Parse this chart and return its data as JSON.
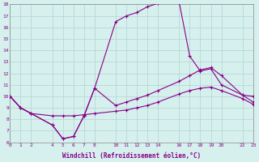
{
  "xlabel": "Windchill (Refroidissement éolien,°C)",
  "bg_color": "#d6f0ee",
  "line_color": "#880088",
  "grid_color": "#b8d8d4",
  "line1_x": [
    0,
    1,
    2,
    4,
    5,
    6,
    7,
    8,
    10,
    11,
    12,
    13,
    14,
    16,
    17,
    18,
    19,
    20,
    22,
    23
  ],
  "line1_y": [
    10.0,
    9.0,
    8.5,
    8.3,
    8.3,
    8.3,
    8.4,
    8.5,
    8.7,
    8.8,
    9.0,
    9.2,
    9.5,
    10.2,
    10.5,
    10.7,
    10.8,
    10.5,
    9.8,
    9.3
  ],
  "line2_x": [
    0,
    1,
    2,
    4,
    5,
    6,
    7,
    8,
    10,
    11,
    12,
    13,
    14,
    16,
    17,
    18,
    19,
    20,
    22,
    23
  ],
  "line2_y": [
    10.0,
    9.0,
    8.5,
    7.5,
    6.3,
    6.5,
    8.3,
    10.7,
    16.5,
    17.0,
    17.3,
    17.8,
    18.1,
    18.2,
    13.5,
    12.2,
    12.4,
    11.0,
    10.1,
    10.0
  ],
  "line3_x": [
    0,
    1,
    2,
    4,
    5,
    6,
    7,
    8,
    10,
    11,
    12,
    13,
    14,
    16,
    17,
    18,
    19,
    20,
    22,
    23
  ],
  "line3_y": [
    10.0,
    9.0,
    8.5,
    7.5,
    6.3,
    6.5,
    8.3,
    10.7,
    9.2,
    9.5,
    9.8,
    10.1,
    10.5,
    11.3,
    11.8,
    12.3,
    12.5,
    11.8,
    10.1,
    9.5
  ],
  "xlim": [
    0,
    23
  ],
  "ylim": [
    6,
    18
  ],
  "xticks": [
    0,
    1,
    2,
    4,
    5,
    6,
    7,
    8,
    10,
    11,
    12,
    13,
    14,
    16,
    17,
    18,
    19,
    20,
    22,
    23
  ],
  "yticks": [
    6,
    7,
    8,
    9,
    10,
    11,
    12,
    13,
    14,
    15,
    16,
    17,
    18
  ]
}
